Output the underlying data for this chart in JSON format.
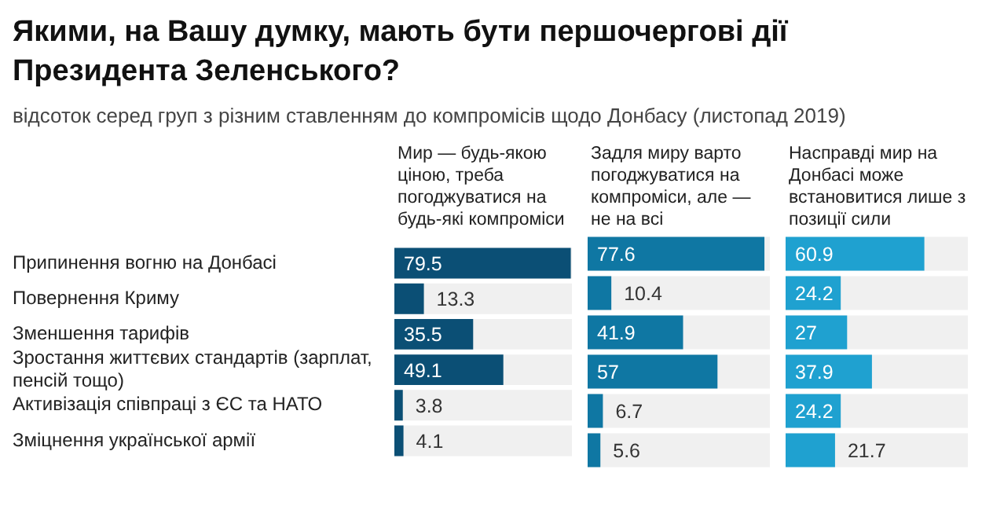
{
  "chart_data": [
    {
      "type": "bar",
      "orientation": "horizontal",
      "title": "Якими, на Вашу думку, мають бути першочергові дії Президента Зеленського?",
      "subtitle": "відсоток серед груп з різним ставленням до компромісів щодо Донбасу (листопад 2019)",
      "categories": [
        "Припинення вогню на Донбасі",
        "Повернення Криму",
        "Зменшення тарифів",
        "Зростання життєвих стандартів (зарплат, пенсій тощо)",
        "Активізація співпраці з ЄС та НАТО",
        "Зміцнення української армії"
      ],
      "xlim": [
        0,
        80
      ],
      "tick_labels": "y",
      "data_labels": true,
      "series": [
        {
          "name": "Мир — будь-якою ціною, треба погоджуватися на будь-які компроміси",
          "color": "#0b4f75",
          "values": [
            79.5,
            13.3,
            35.5,
            49.1,
            3.8,
            4.1
          ]
        }
      ]
    },
    {
      "type": "bar",
      "orientation": "horizontal",
      "categories": [
        null,
        null,
        null,
        null,
        null,
        null
      ],
      "xlim": [
        0,
        80
      ],
      "tick_labels": false,
      "data_labels": true,
      "series": [
        {
          "name": "Задля миру варто погоджуватися на компроміси, але — не на всі",
          "color": "#0f77a3",
          "values": [
            77.6,
            10.4,
            41.9,
            57,
            6.7,
            5.6
          ]
        }
      ]
    },
    {
      "type": "bar",
      "orientation": "horizontal",
      "categories": [
        null,
        null,
        null,
        null,
        null,
        null
      ],
      "xlim": [
        0,
        80
      ],
      "tick_labels": false,
      "data_labels": true,
      "series": [
        {
          "name": "Насправді мир на Донбасі може встановитися лише з позиції сили",
          "color": "#1fa1d0",
          "values": [
            60.9,
            24.2,
            27,
            37.9,
            24.2,
            21.7
          ]
        }
      ]
    }
  ]
}
